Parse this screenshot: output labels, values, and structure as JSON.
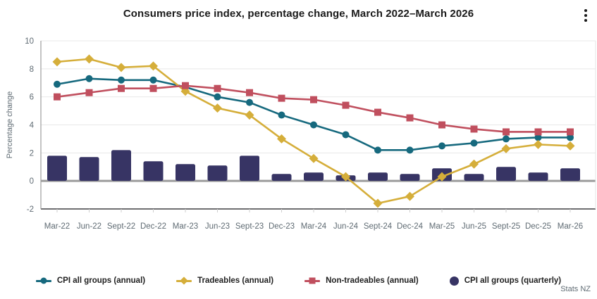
{
  "header": {
    "title": "Consumers price index, percentage change, March 2022–March 2026"
  },
  "chart_data": {
    "type": "combo-line-bar",
    "title": "Consumers price index, percentage change, March 2022–March 2026",
    "xlabel": "",
    "ylabel": "Percentage change",
    "ylim": [
      -2,
      10
    ],
    "yticks": [
      -2,
      0,
      2,
      4,
      6,
      8,
      10
    ],
    "grid": true,
    "legend_position": "bottom",
    "categories": [
      "Mar-22",
      "Jun-22",
      "Sept-22",
      "Dec-22",
      "Mar-23",
      "Jun-23",
      "Sept-23",
      "Dec-23",
      "Mar-24",
      "Jun-24",
      "Sept-24",
      "Dec-24",
      "Mar-25",
      "Jun-25",
      "Sept-25",
      "Dec-25",
      "Mar-26"
    ],
    "series": [
      {
        "name": "CPI all groups (annual)",
        "type": "line",
        "marker": "circle",
        "color": "#16697e",
        "values": [
          6.9,
          7.3,
          7.2,
          7.2,
          6.7,
          6.0,
          5.6,
          4.7,
          4.0,
          3.3,
          2.2,
          2.2,
          2.5,
          2.7,
          3.0,
          3.1,
          3.1
        ]
      },
      {
        "name": "Tradeables (annual)",
        "type": "line",
        "marker": "diamond",
        "color": "#d5ae3a",
        "values": [
          8.5,
          8.7,
          8.1,
          8.2,
          6.4,
          5.2,
          4.7,
          3.0,
          1.6,
          0.3,
          -1.6,
          -1.1,
          0.3,
          1.2,
          2.3,
          2.6,
          2.5
        ]
      },
      {
        "name": "Non-tradeables (annual)",
        "type": "line",
        "marker": "square",
        "color": "#c04f5e",
        "values": [
          6.0,
          6.3,
          6.6,
          6.6,
          6.8,
          6.6,
          6.3,
          5.9,
          5.8,
          5.4,
          4.9,
          4.5,
          4.0,
          3.7,
          3.5,
          3.5,
          3.5
        ]
      },
      {
        "name": "CPI all groups (quarterly)",
        "type": "bar",
        "marker": "big-circle",
        "color": "#373464",
        "values": [
          1.8,
          1.7,
          2.2,
          1.4,
          1.2,
          1.1,
          1.8,
          0.5,
          0.6,
          0.4,
          0.6,
          0.5,
          0.9,
          0.5,
          1.0,
          0.6,
          0.9
        ]
      }
    ],
    "colors": {
      "grid": "#e8e8e8",
      "zero_line": "#9c9c9c",
      "axis": "#3f3f41",
      "left_border": "#9c9c9c",
      "right_border": "#e5e5e5",
      "tick": "#cfcfcf",
      "axis_text": "#5f6b73"
    }
  },
  "footer": {
    "source": "Stats NZ"
  }
}
